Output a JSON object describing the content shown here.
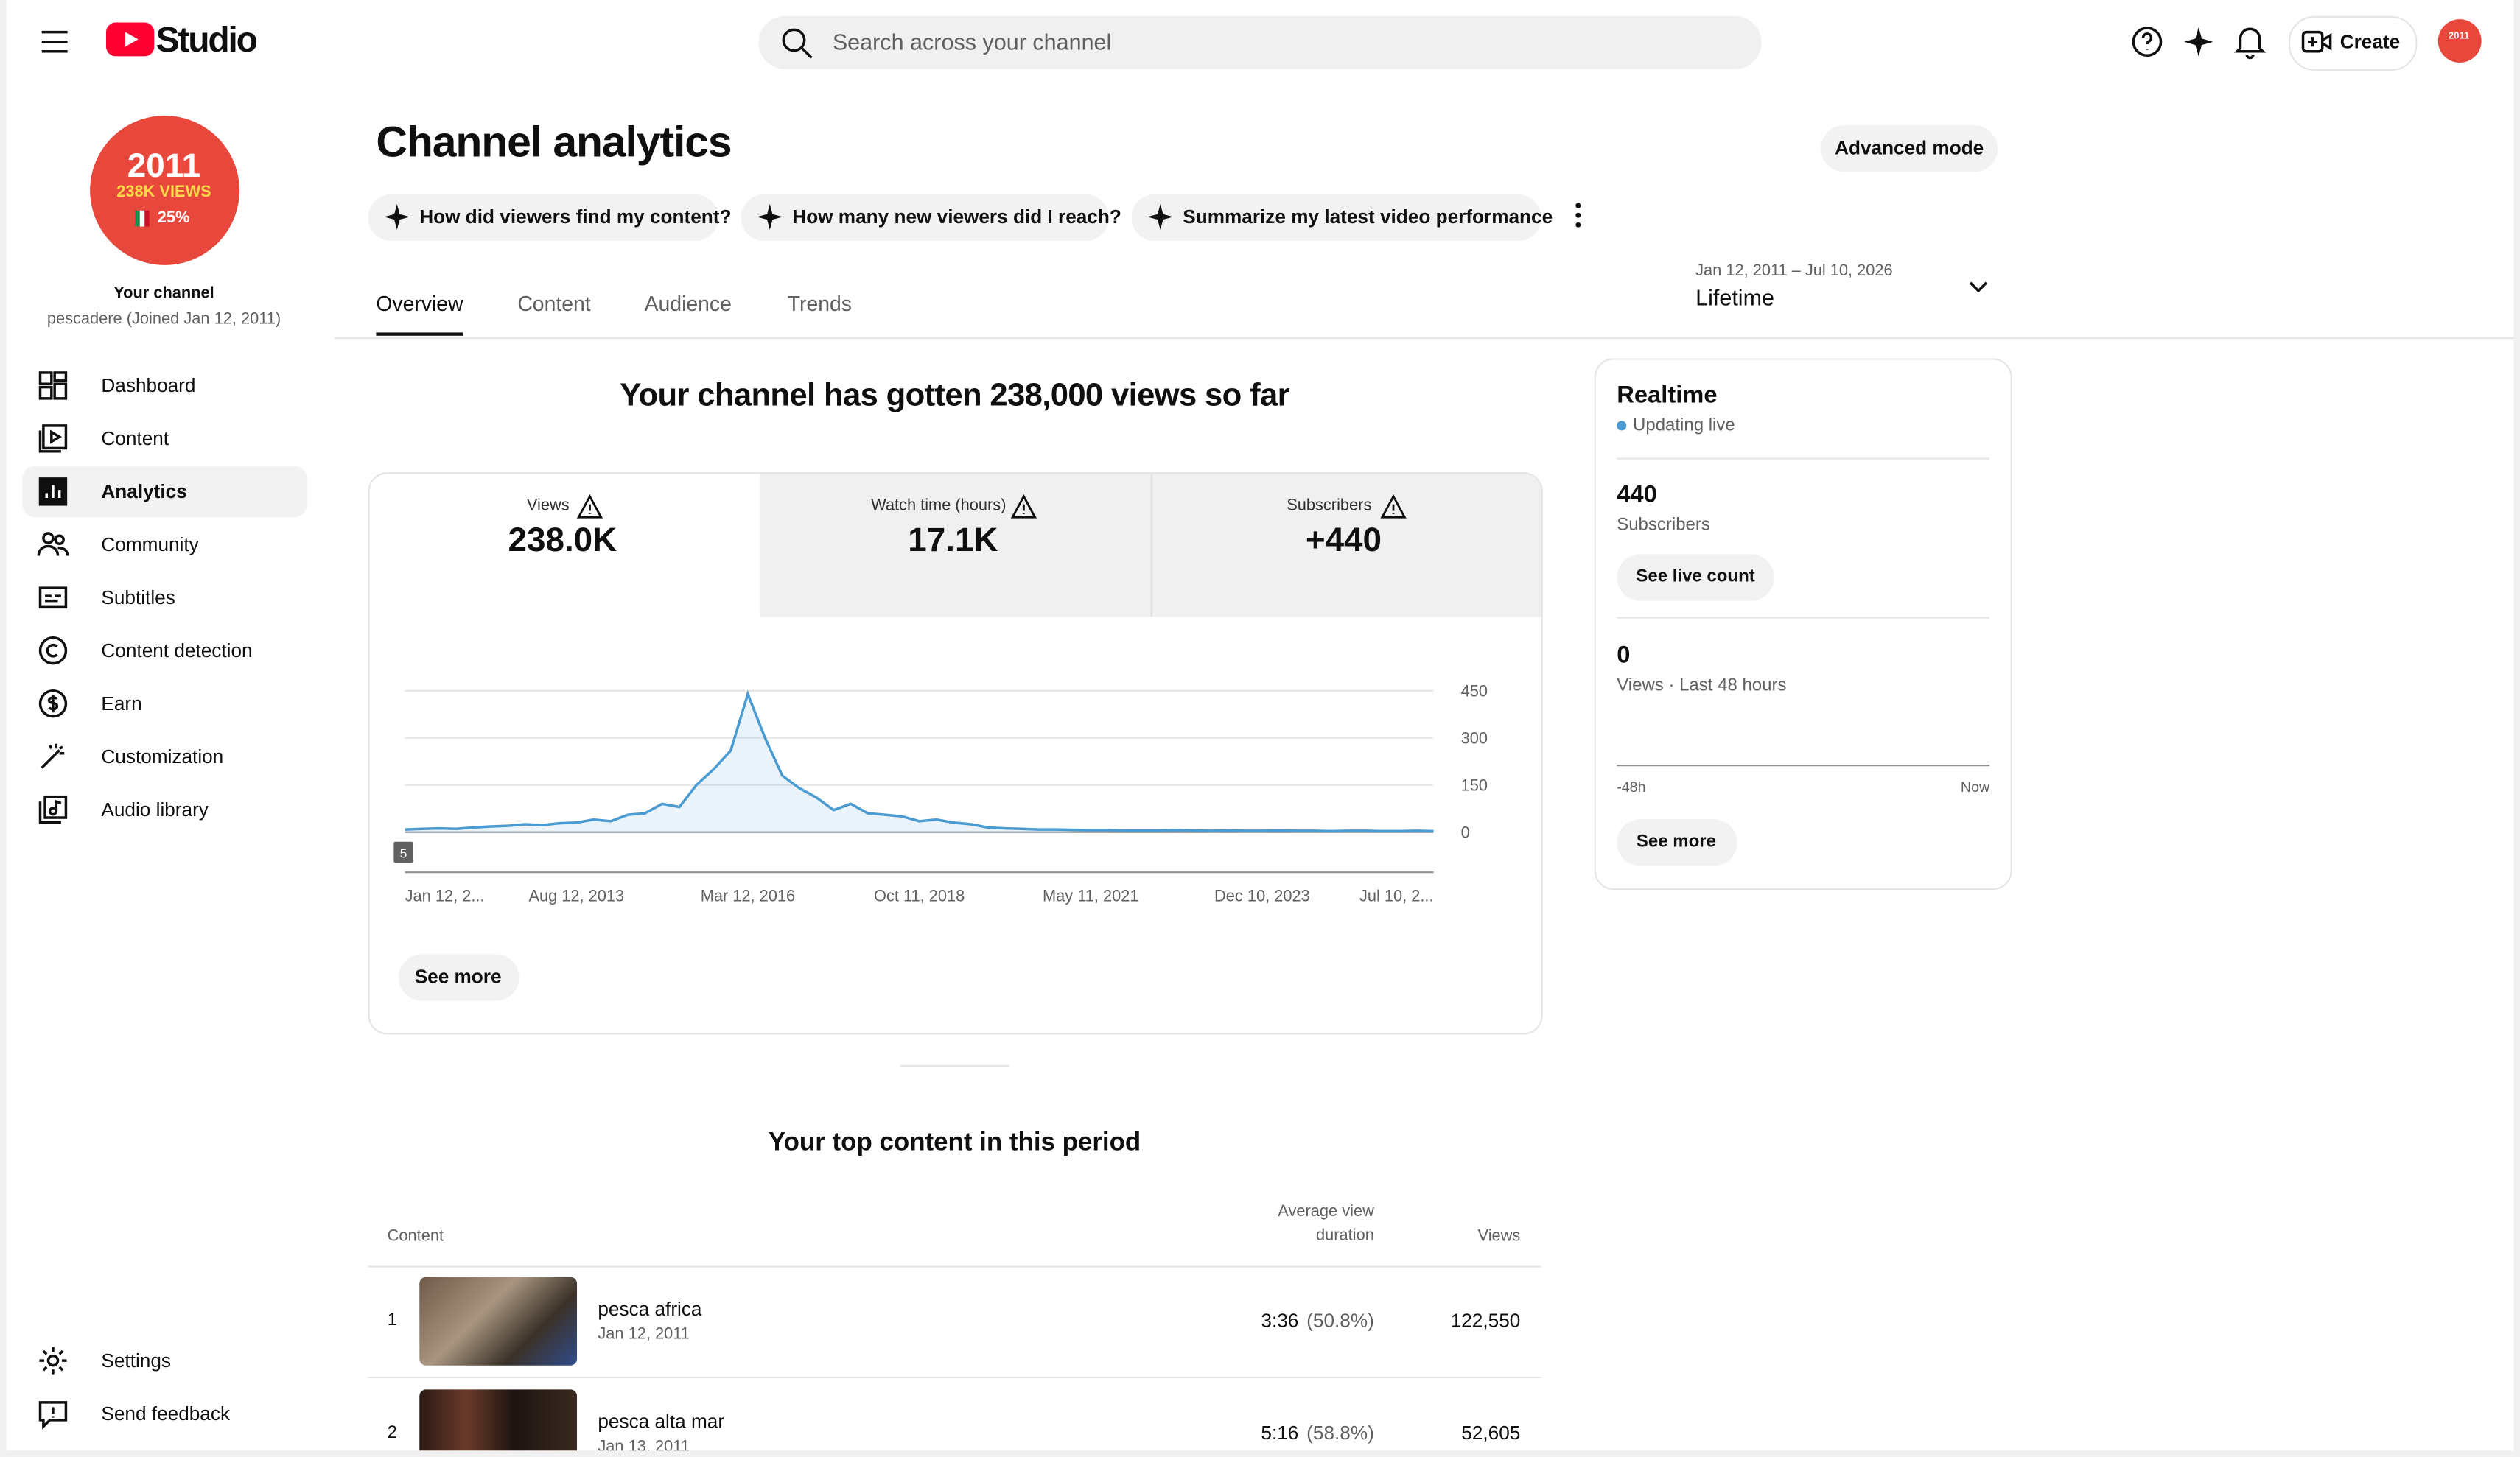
{
  "header": {
    "logo": "Studio",
    "search_placeholder": "Search across your channel",
    "create": "Create",
    "avatar_text": "2011"
  },
  "sidebar": {
    "avatar": {
      "year": "2011",
      "views": "238K VIEWS",
      "pct": "25%"
    },
    "channel_label": "Your channel",
    "channel_sub": "pescadere (Joined Jan 12, 2011)",
    "nav": [
      "Dashboard",
      "Content",
      "Analytics",
      "Community",
      "Subtitles",
      "Content detection",
      "Earn",
      "Customization",
      "Audio library"
    ],
    "bottom": [
      "Settings",
      "Send feedback"
    ]
  },
  "page": {
    "title": "Channel analytics",
    "advanced": "Advanced mode",
    "prompts": [
      "How did viewers find my content?",
      "How many new viewers did I reach?",
      "Summarize my latest video performance"
    ],
    "tabs": [
      "Overview",
      "Content",
      "Audience",
      "Trends"
    ],
    "date_range": "Jan 12, 2011 – Jul 10, 2026",
    "period": "Lifetime"
  },
  "overview": {
    "headline": "Your channel has gotten 238,000 views so far",
    "metrics": [
      {
        "label": "Views",
        "value": "238.0K"
      },
      {
        "label": "Watch time (hours)",
        "value": "17.1K"
      },
      {
        "label": "Subscribers",
        "value": "+440"
      }
    ],
    "see_more": "See more"
  },
  "chart_data": {
    "type": "line",
    "categories": [
      "Jan 12, 2...",
      null,
      null,
      null,
      null,
      null,
      null,
      null,
      null,
      null,
      "Aug 12, 2013",
      null,
      null,
      null,
      null,
      null,
      null,
      null,
      null,
      null,
      "Mar 12, 2016",
      null,
      null,
      null,
      null,
      null,
      null,
      null,
      null,
      null,
      "Oct 11, 2018",
      null,
      null,
      null,
      null,
      null,
      null,
      null,
      null,
      null,
      "May 11, 2021",
      null,
      null,
      null,
      null,
      null,
      null,
      null,
      null,
      null,
      "Dec 10, 2023",
      null,
      null,
      null,
      null,
      null,
      null,
      null,
      null,
      null,
      "Jul 10, 2..."
    ],
    "values": [
      8,
      10,
      12,
      10,
      15,
      18,
      20,
      25,
      22,
      28,
      30,
      40,
      35,
      55,
      60,
      90,
      80,
      150,
      200,
      260,
      440,
      300,
      180,
      140,
      110,
      70,
      90,
      60,
      55,
      50,
      35,
      40,
      30,
      25,
      15,
      12,
      10,
      8,
      8,
      7,
      6,
      6,
      5,
      5,
      5,
      6,
      5,
      4,
      5,
      4,
      4,
      5,
      4,
      4,
      3,
      4,
      4,
      3,
      3,
      4,
      3
    ],
    "color": "#4a9bd1",
    "ylim": [
      0,
      450
    ],
    "yticks": [
      0,
      150,
      300,
      450
    ],
    "grid": true,
    "annotation": "5"
  },
  "realtime": {
    "title": "Realtime",
    "status": "Updating live",
    "subs": "440",
    "subs_label": "Subscribers",
    "live_count": "See live count",
    "views": "0",
    "views_label": "Views · Last 48 hours",
    "axis_start": "-48h",
    "axis_end": "Now",
    "see_more": "See more"
  },
  "top_content": {
    "title": "Your top content in this period",
    "columns": [
      "Content",
      "Average view duration",
      "Views"
    ],
    "rows": [
      {
        "rank": "1",
        "title": "pesca africa",
        "date": "Jan 12, 2011",
        "duration": "3:36",
        "pct": "(50.8%)",
        "views": "122,550"
      },
      {
        "rank": "2",
        "title": "pesca alta mar",
        "date": "Jan 13, 2011",
        "duration": "5:16",
        "pct": "(58.8%)",
        "views": "52,605"
      }
    ]
  }
}
